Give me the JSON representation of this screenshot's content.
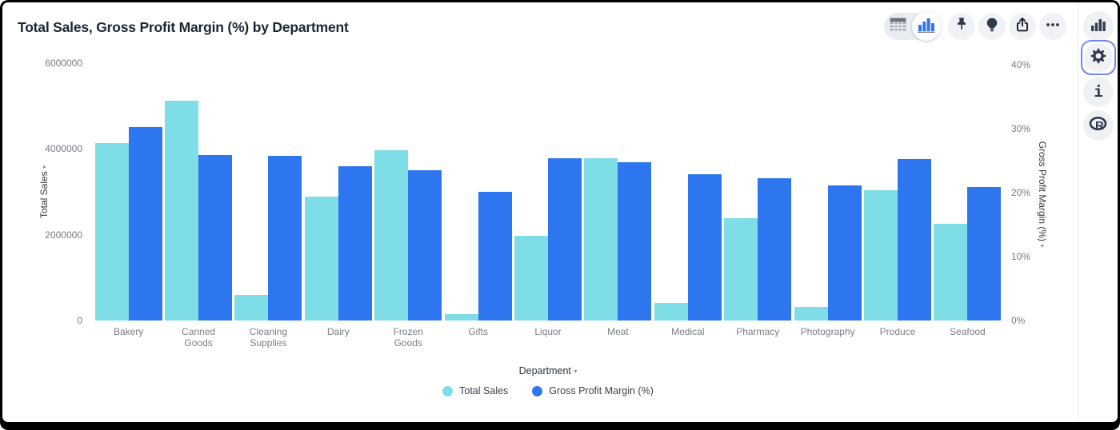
{
  "header": {
    "title": "Total Sales, Gross Profit Margin (%) by Department"
  },
  "toolbar": {
    "view_toggle": {
      "options": [
        {
          "icon": "table-view-icon",
          "selected": false
        },
        {
          "icon": "chart-view-icon",
          "selected": true
        }
      ]
    },
    "buttons": [
      {
        "icon": "pin-icon"
      },
      {
        "icon": "lightbulb-icon"
      },
      {
        "icon": "share-icon"
      },
      {
        "icon": "more-icon"
      }
    ]
  },
  "side_rail": {
    "selection_color": "#7285F6",
    "buttons": [
      {
        "icon": "chart-panel-icon",
        "selected": false
      },
      {
        "icon": "settings-gear-icon",
        "selected": true
      },
      {
        "icon": "info-icon",
        "selected": false
      },
      {
        "icon": "r-logo-icon",
        "selected": false
      }
    ]
  },
  "chart_data": {
    "type": "bar",
    "title": "Total Sales, Gross Profit Margin (%) by Department",
    "categories": [
      "Bakery",
      "Canned Goods",
      "Cleaning Supplies",
      "Dairy",
      "Frozen Goods",
      "Gifts",
      "Liquor",
      "Meat",
      "Medical",
      "Pharmacy",
      "Photography",
      "Produce",
      "Seafood"
    ],
    "series": [
      {
        "name": "Total Sales",
        "axis": "left",
        "color": "#7FDDE8",
        "values": [
          4130000,
          5120000,
          590000,
          2890000,
          3960000,
          150000,
          1970000,
          3790000,
          410000,
          2390000,
          310000,
          3040000,
          2260000
        ]
      },
      {
        "name": "Gross Profit Margin (%)",
        "axis": "right",
        "color": "#2E75F0",
        "values": [
          30.2,
          25.9,
          25.8,
          24.1,
          23.5,
          20.1,
          25.4,
          24.8,
          22.9,
          22.2,
          21.1,
          25.2,
          20.9
        ]
      }
    ],
    "x_axis": {
      "label": "Department"
    },
    "left_axis": {
      "label": "Total Sales",
      "max": 6000000,
      "ticks": [
        {
          "label": "0",
          "value": 0
        },
        {
          "label": "2000000",
          "value": 2000000
        },
        {
          "label": "4000000",
          "value": 4000000
        },
        {
          "label": "6000000",
          "value": 6000000
        }
      ]
    },
    "right_axis": {
      "label": "Gross Profit Margin (%)",
      "max": 40,
      "ticks": [
        {
          "label": "0%",
          "value": 0
        },
        {
          "label": "10%",
          "value": 10
        },
        {
          "label": "20%",
          "value": 20
        },
        {
          "label": "30%",
          "value": 30
        },
        {
          "label": "40%",
          "value": 40
        }
      ]
    },
    "legend": {
      "position": "bottom",
      "items": [
        "Total Sales",
        "Gross Profit Margin (%)"
      ]
    },
    "grid": false
  }
}
